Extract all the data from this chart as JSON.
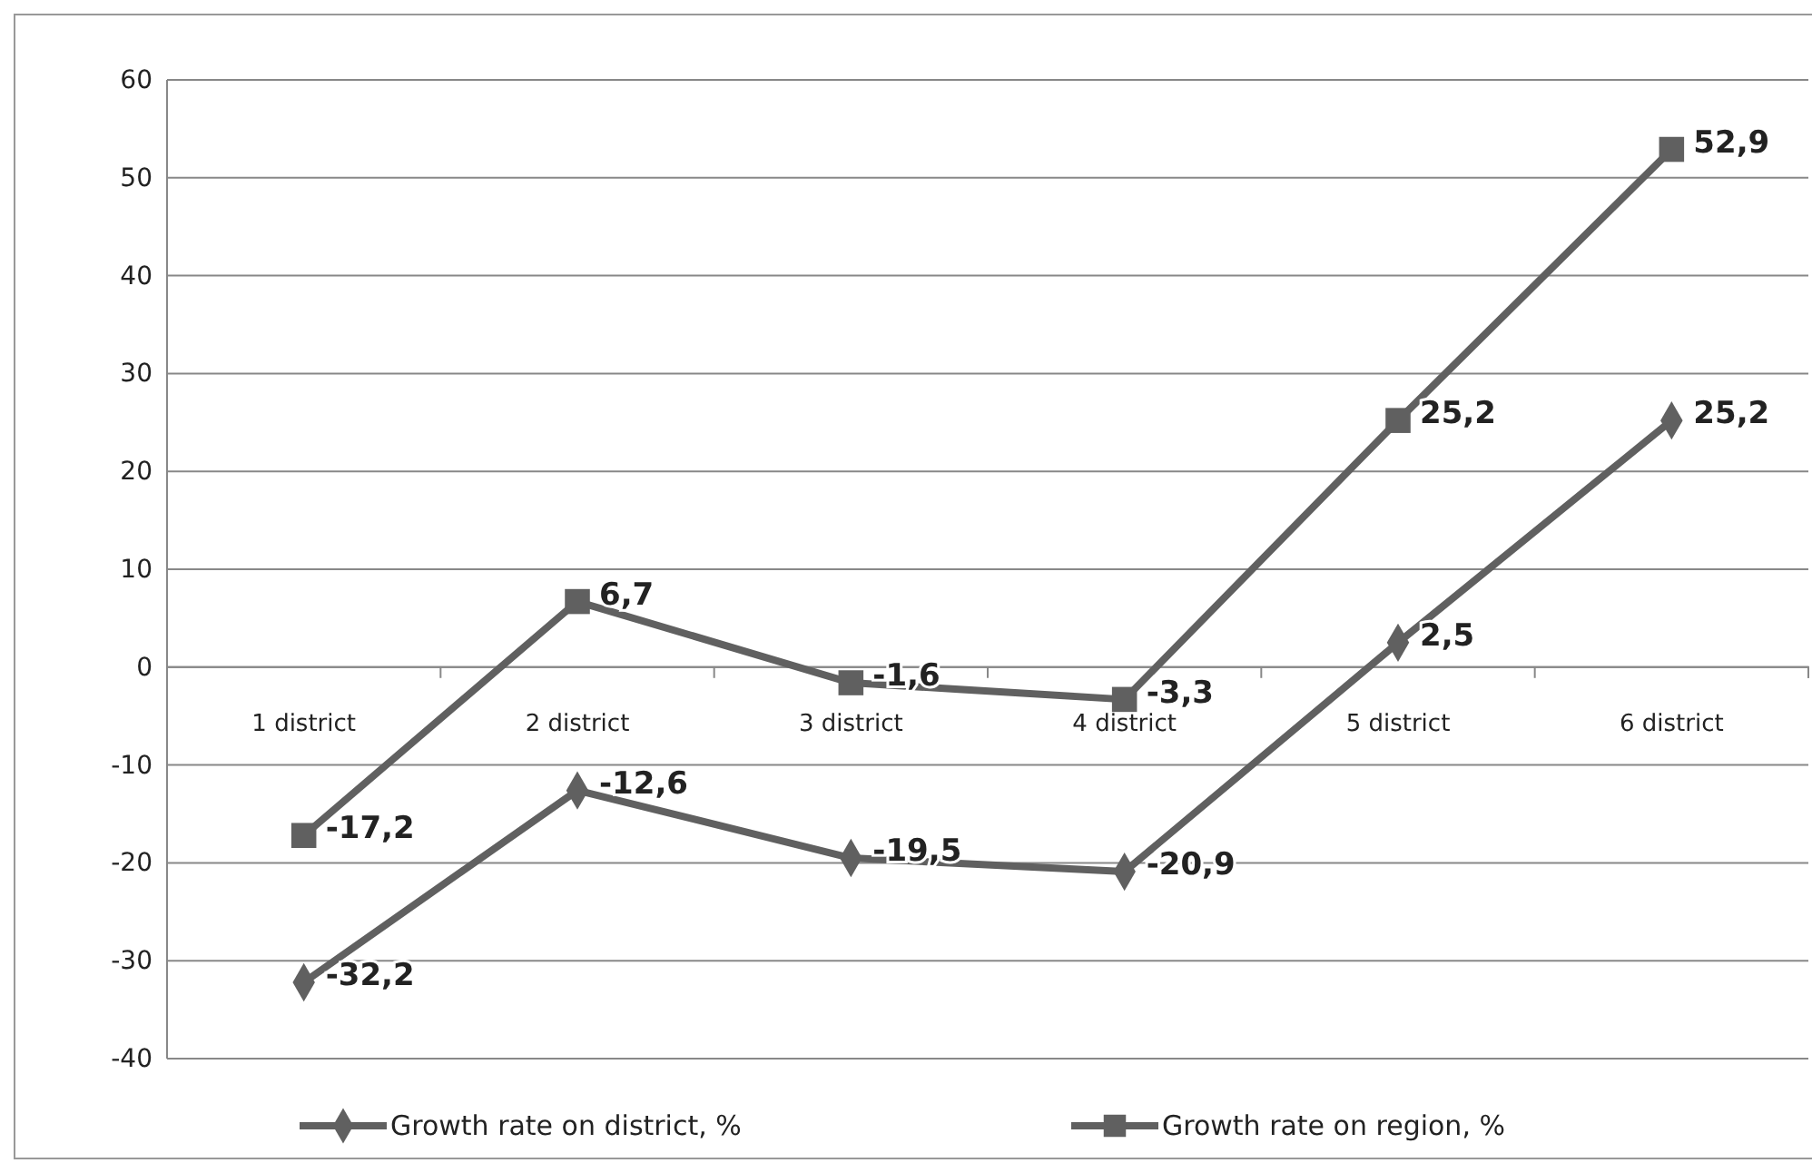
{
  "chart_data": {
    "type": "line",
    "categories": [
      "1 district",
      "2 district",
      "3 district",
      "4 district",
      "5 district",
      "6 district"
    ],
    "series": [
      {
        "name": "Growth rate on district, %",
        "color": "#606060",
        "marker": "diamond",
        "values": [
          -32.2,
          -12.6,
          -19.5,
          -20.9,
          2.5,
          25.2
        ],
        "value_labels": [
          "-32,2",
          "-12,6",
          "-19,5",
          "-20,9",
          "2,5",
          "25,2"
        ]
      },
      {
        "name": "Growth rate on region, %",
        "color": "#606060",
        "marker": "square",
        "values": [
          -17.2,
          6.7,
          -1.6,
          -3.3,
          25.2,
          52.9
        ],
        "value_labels": [
          "-17,2",
          "6,7",
          "-1,6",
          "-3,3",
          "25,2",
          "52,9"
        ]
      }
    ],
    "ylim": [
      -40,
      60
    ],
    "yticks": [
      -40,
      -30,
      -20,
      -10,
      0,
      10,
      20,
      30,
      40,
      50,
      60
    ],
    "grid": "y",
    "legend": "bottom"
  }
}
